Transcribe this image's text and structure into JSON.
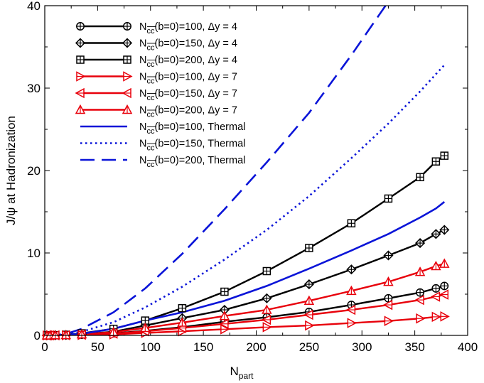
{
  "chart_data": {
    "type": "line",
    "xlabel_main": "N",
    "xlabel_sub": "part",
    "ylabel": "J/ψ at Hadronization",
    "xlim": [
      0,
      400
    ],
    "ylim": [
      0,
      40
    ],
    "xticks": [
      0,
      50,
      100,
      150,
      200,
      250,
      300,
      350,
      400
    ],
    "yticks": [
      0,
      10,
      20,
      30,
      40
    ],
    "x": [
      2,
      5,
      10,
      20,
      35,
      65,
      95,
      130,
      170,
      210,
      250,
      290,
      325,
      355,
      370,
      378
    ],
    "series": [
      {
        "name": "N_cc̄(b=0)=100, Δy = 4",
        "color": "#000000",
        "marker": "circle",
        "style": "solid",
        "values": [
          0,
          0,
          0.01,
          0.02,
          0.08,
          0.25,
          0.55,
          1.0,
          1.65,
          2.2,
          2.85,
          3.7,
          4.5,
          5.2,
          5.7,
          6.0
        ]
      },
      {
        "name": "N_cc̄(b=0)=150, Δy = 4",
        "color": "#000000",
        "marker": "diamond",
        "style": "solid",
        "values": [
          0,
          0,
          0.02,
          0.05,
          0.15,
          0.45,
          1.2,
          2.1,
          3.1,
          4.5,
          6.2,
          8.0,
          9.7,
          11.2,
          12.3,
          12.8
        ]
      },
      {
        "name": "N_cc̄(b=0)=200, Δy = 4",
        "color": "#000000",
        "marker": "square",
        "style": "solid",
        "values": [
          0,
          0,
          0.03,
          0.08,
          0.25,
          0.8,
          1.8,
          3.3,
          5.3,
          7.8,
          10.6,
          13.6,
          16.6,
          19.2,
          21.1,
          21.8
        ]
      },
      {
        "name": "N_cc̄(b=0)=100, Δy = 7",
        "color": "#e8000b",
        "marker": "tri-right",
        "style": "solid",
        "values": [
          0,
          0,
          0,
          0.01,
          0.04,
          0.12,
          0.3,
          0.5,
          0.75,
          1.0,
          1.2,
          1.5,
          1.75,
          2.05,
          2.25,
          2.3
        ]
      },
      {
        "name": "N_cc̄(b=0)=150, Δy = 7",
        "color": "#e8000b",
        "marker": "tri-left",
        "style": "solid",
        "values": [
          0,
          0,
          0.01,
          0.02,
          0.08,
          0.22,
          0.5,
          0.9,
          1.4,
          1.9,
          2.5,
          3.1,
          3.7,
          4.3,
          4.7,
          4.95
        ]
      },
      {
        "name": "N_cc̄(b=0)=200, Δy = 7",
        "color": "#e8000b",
        "marker": "tri-up",
        "style": "solid",
        "values": [
          0,
          0,
          0.02,
          0.04,
          0.13,
          0.4,
          0.9,
          1.55,
          2.35,
          3.1,
          4.2,
          5.4,
          6.5,
          7.7,
          8.4,
          8.7
        ]
      },
      {
        "name": "N_cc̄(b=0)=100, Thermal",
        "color": "#0a14d8",
        "marker": "none",
        "style": "solid",
        "values": [
          0,
          0,
          0.01,
          0.05,
          0.2,
          0.8,
          1.8,
          2.8,
          4.2,
          6.0,
          8.1,
          10.3,
          12.3,
          14.3,
          15.4,
          16.2
        ]
      },
      {
        "name": "N_cc̄(b=0)=150, Thermal",
        "color": "#0a14d8",
        "marker": "none",
        "style": "dotted",
        "values": [
          0,
          0,
          0.02,
          0.1,
          0.45,
          1.6,
          3.4,
          5.9,
          9.2,
          12.8,
          16.9,
          21.5,
          25.7,
          29.6,
          31.7,
          32.8
        ]
      },
      {
        "name": "N_cc̄(b=0)=200, Thermal",
        "color": "#0a14d8",
        "marker": "none",
        "style": "dashed",
        "values": [
          0,
          0,
          0.04,
          0.18,
          0.8,
          2.8,
          5.7,
          9.9,
          15.3,
          21.0,
          27.0,
          34.0,
          40.5,
          null,
          null,
          null
        ]
      }
    ],
    "legend": {
      "placement": "top-left",
      "entries": [
        {
          "main": "N",
          "sub": "cc",
          "rest": "(b=0)=100, Δy = 4"
        },
        {
          "main": "N",
          "sub": "cc",
          "rest": "(b=0)=150, Δy = 4"
        },
        {
          "main": "N",
          "sub": "cc",
          "rest": "(b=0)=200, Δy = 4"
        },
        {
          "main": "N",
          "sub": "cc",
          "rest": "(b=0)=100, Δy = 7"
        },
        {
          "main": "N",
          "sub": "cc",
          "rest": "(b=0)=150, Δy = 7"
        },
        {
          "main": "N",
          "sub": "cc",
          "rest": "(b=0)=200, Δy = 7"
        },
        {
          "main": "N",
          "sub": "cc",
          "rest": "(b=0)=100, Thermal"
        },
        {
          "main": "N",
          "sub": "cc",
          "rest": "(b=0)=150, Thermal"
        },
        {
          "main": "N",
          "sub": "cc",
          "rest": "(b=0)=200, Thermal"
        }
      ]
    }
  }
}
